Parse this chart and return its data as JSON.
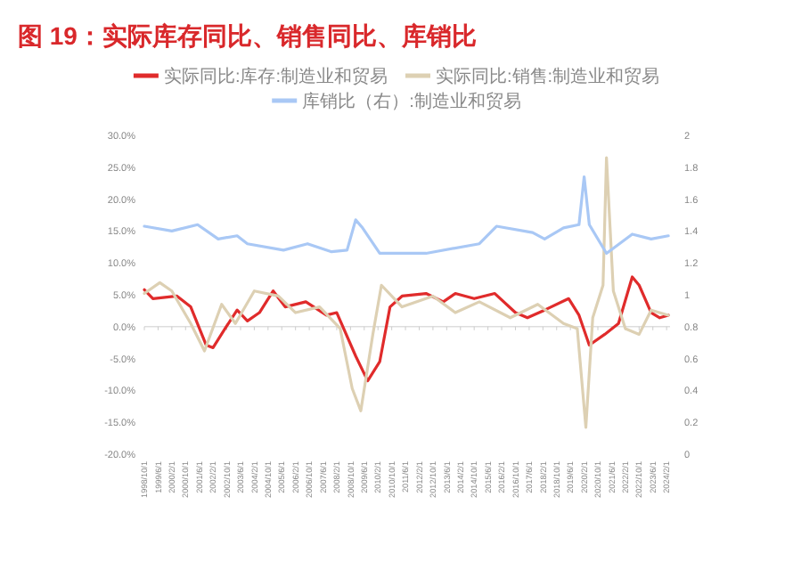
{
  "chart_data": {
    "type": "line",
    "title": "图 19：实际库存同比、销售同比、库销比",
    "legend": "top",
    "xlim": [
      "1998-10",
      "2024-04"
    ],
    "xticks": [
      {
        "value": "1998-10",
        "label": "1998/10/1"
      },
      {
        "value": "1999-06",
        "label": "1999/6/1"
      },
      {
        "value": "2000-02",
        "label": "2000/2/1"
      },
      {
        "value": "2000-10",
        "label": "2000/10/1"
      },
      {
        "value": "2001-06",
        "label": "2001/6/1"
      },
      {
        "value": "2002-02",
        "label": "2002/2/1"
      },
      {
        "value": "2002-10",
        "label": "2002/10/1"
      },
      {
        "value": "2003-06",
        "label": "2003/6/1"
      },
      {
        "value": "2004-02",
        "label": "2004/2/1"
      },
      {
        "value": "2004-10",
        "label": "2004/10/1"
      },
      {
        "value": "2005-06",
        "label": "2005/6/1"
      },
      {
        "value": "2006-02",
        "label": "2006/2/1"
      },
      {
        "value": "2006-10",
        "label": "2006/10/1"
      },
      {
        "value": "2007-06",
        "label": "2007/6/1"
      },
      {
        "value": "2008-02",
        "label": "2008/2/1"
      },
      {
        "value": "2008-10",
        "label": "2008/10/1"
      },
      {
        "value": "2009-06",
        "label": "2009/6/1"
      },
      {
        "value": "2010-02",
        "label": "2010/2/1"
      },
      {
        "value": "2010-10",
        "label": "2010/10/1"
      },
      {
        "value": "2011-06",
        "label": "2011/6/1"
      },
      {
        "value": "2012-02",
        "label": "2012/2/1"
      },
      {
        "value": "2012-10",
        "label": "2012/10/1"
      },
      {
        "value": "2013-06",
        "label": "2013/6/1"
      },
      {
        "value": "2014-02",
        "label": "2014/2/1"
      },
      {
        "value": "2014-10",
        "label": "2014/10/1"
      },
      {
        "value": "2015-06",
        "label": "2015/6/1"
      },
      {
        "value": "2016-02",
        "label": "2016/2/1"
      },
      {
        "value": "2016-10",
        "label": "2016/10/1"
      },
      {
        "value": "2017-06",
        "label": "2017/6/1"
      },
      {
        "value": "2018-02",
        "label": "2018/2/1"
      },
      {
        "value": "2018-10",
        "label": "2018/10/1"
      },
      {
        "value": "2019-06",
        "label": "2019/6/1"
      },
      {
        "value": "2020-02",
        "label": "2020/2/1"
      },
      {
        "value": "2020-10",
        "label": "2020/10/1"
      },
      {
        "value": "2021-06",
        "label": "2021/6/1"
      },
      {
        "value": "2022-02",
        "label": "2022/2/1"
      },
      {
        "value": "2022-10",
        "label": "2022/10/1"
      },
      {
        "value": "2023-06",
        "label": "2023/6/1"
      },
      {
        "value": "2024-02",
        "label": "2024/2/1"
      }
    ],
    "ylim": [
      -20,
      30
    ],
    "yticks": [
      {
        "value": -20,
        "label": "-20.0%"
      },
      {
        "value": -15,
        "label": "-15.0%"
      },
      {
        "value": -10,
        "label": "-10.0%"
      },
      {
        "value": -5,
        "label": "-5.0%"
      },
      {
        "value": 0,
        "label": "0.0%"
      },
      {
        "value": 5,
        "label": "5.0%"
      },
      {
        "value": 10,
        "label": "10.0%"
      },
      {
        "value": 15,
        "label": "15.0%"
      },
      {
        "value": 20,
        "label": "20.0%"
      },
      {
        "value": 25,
        "label": "25.0%"
      },
      {
        "value": 30,
        "label": "30.0%"
      }
    ],
    "y2lim": [
      0,
      2
    ],
    "y2ticks": [
      0,
      0.2,
      0.4,
      0.6,
      0.8,
      1,
      1.2,
      1.4,
      1.6,
      1.8,
      2
    ],
    "series": [
      {
        "name": "实际同比:库存:制造业和贸易",
        "color": "#e02b2b",
        "x": [
          "1998-10",
          "1999-03",
          "2000-05",
          "2001-01",
          "2001-10",
          "2002-02",
          "2002-09",
          "2003-04",
          "2003-10",
          "2004-05",
          "2005-01",
          "2005-08",
          "2006-08",
          "2007-08",
          "2008-02",
          "2009-01",
          "2009-08",
          "2010-03",
          "2010-09",
          "2011-04",
          "2012-06",
          "2013-04",
          "2013-11",
          "2014-10",
          "2015-10",
          "2016-10",
          "2017-05",
          "2018-03",
          "2019-05",
          "2019-11",
          "2020-05",
          "2021-02",
          "2021-10",
          "2022-06",
          "2022-10",
          "2023-05",
          "2023-10",
          "2024-03"
        ],
        "values": [
          5.8,
          4.4,
          4.8,
          3.1,
          -2.9,
          -3.3,
          -0.3,
          2.6,
          0.9,
          2.2,
          5.6,
          3.1,
          3.9,
          1.8,
          2.2,
          -4.6,
          -8.5,
          -5.5,
          3.1,
          4.8,
          5.2,
          3.9,
          5.2,
          4.4,
          5.2,
          2.2,
          1.4,
          2.6,
          4.4,
          1.8,
          -2.9,
          -1.2,
          0.5,
          7.8,
          6.5,
          2.2,
          1.4,
          1.8
        ]
      },
      {
        "name": "实际同比:销售:制造业和贸易",
        "color": "#ddd0b3",
        "x": [
          "1998-10",
          "1999-07",
          "2000-02",
          "2001-01",
          "2001-09",
          "2002-07",
          "2003-03",
          "2004-02",
          "2005-04",
          "2006-02",
          "2007-04",
          "2008-04",
          "2008-11",
          "2009-04",
          "2009-11",
          "2010-04",
          "2011-04",
          "2012-10",
          "2013-11",
          "2015-01",
          "2016-07",
          "2017-11",
          "2019-02",
          "2019-10",
          "2020-03",
          "2020-07",
          "2021-01",
          "2021-03",
          "2021-07",
          "2022-02",
          "2022-10",
          "2023-05",
          "2024-03"
        ],
        "values": [
          5.2,
          6.9,
          5.6,
          0.5,
          -3.8,
          3.5,
          0.5,
          5.6,
          4.8,
          2.2,
          3.1,
          -0.3,
          -9.7,
          -13.2,
          -1.2,
          6.5,
          3.1,
          4.8,
          2.2,
          3.9,
          1.4,
          3.5,
          0.5,
          -0.3,
          -15.8,
          1.4,
          6.5,
          26.5,
          5.6,
          -0.3,
          -1.2,
          2.6,
          1.8
        ]
      },
      {
        "name": "库销比（右）:制造业和贸易",
        "color": "#a9c8f5",
        "axis": "y2",
        "x": [
          "1998-10",
          "2000-02",
          "2001-05",
          "2002-05",
          "2003-04",
          "2003-10",
          "2005-07",
          "2006-09",
          "2007-11",
          "2008-08",
          "2009-01",
          "2009-05",
          "2010-03",
          "2011-07",
          "2012-06",
          "2015-01",
          "2015-11",
          "2017-08",
          "2018-03",
          "2019-02",
          "2019-11",
          "2020-02",
          "2020-05",
          "2021-03",
          "2022-06",
          "2023-05",
          "2024-03"
        ],
        "values": [
          1.43,
          1.4,
          1.44,
          1.35,
          1.37,
          1.32,
          1.28,
          1.32,
          1.27,
          1.28,
          1.47,
          1.42,
          1.26,
          1.26,
          1.26,
          1.32,
          1.43,
          1.39,
          1.35,
          1.42,
          1.44,
          1.74,
          1.44,
          1.26,
          1.38,
          1.35,
          1.37
        ]
      }
    ]
  }
}
